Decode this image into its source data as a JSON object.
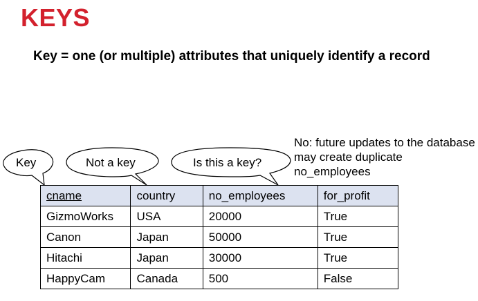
{
  "slide": {
    "title": "KEYS",
    "definition": "Key = one (or multiple) attributes that uniquely identify a record",
    "note": "No: future updates to the database may create duplicate no_employees"
  },
  "callouts": [
    {
      "id": "key",
      "label": "Key"
    },
    {
      "id": "not_key",
      "label": "Not a key"
    },
    {
      "id": "question",
      "label": "Is this a key?"
    }
  ],
  "table": {
    "columns": [
      "cname",
      "country",
      "no_employees",
      "for_profit"
    ],
    "key_column": "cname",
    "header_fill": "#dce2f0",
    "rows": [
      [
        "GizmoWorks",
        "USA",
        "20000",
        "True"
      ],
      [
        "Canon",
        "Japan",
        "50000",
        "True"
      ],
      [
        "Hitachi",
        "Japan",
        "30000",
        "True"
      ],
      [
        "HappyCam",
        "Canada",
        "500",
        "False"
      ]
    ]
  },
  "colors": {
    "title": "#d3212d",
    "text": "#000000",
    "background": "#ffffff"
  }
}
